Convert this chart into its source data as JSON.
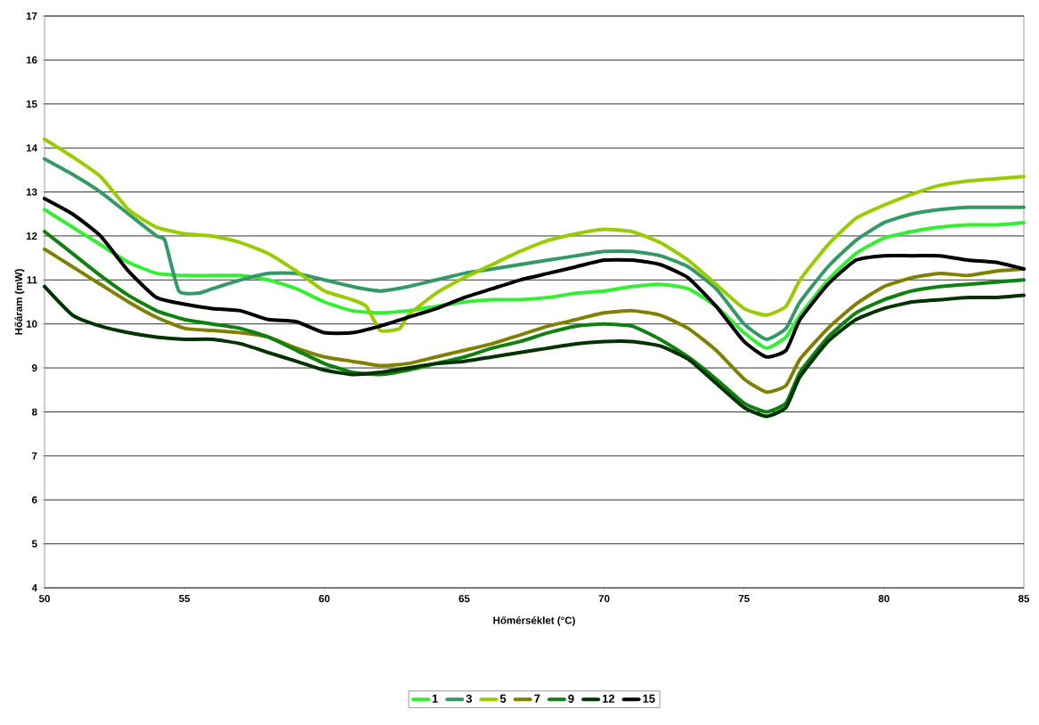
{
  "chart_data": {
    "type": "line",
    "xlabel": "Hőmérséklet (°C)",
    "ylabel": "Hőáram (mW)",
    "xlim": [
      50,
      85
    ],
    "xticks": [
      50,
      55,
      60,
      65,
      70,
      75,
      80,
      85
    ],
    "ylim": [
      4,
      17
    ],
    "yticks": [
      4,
      5,
      6,
      7,
      8,
      9,
      10,
      11,
      12,
      13,
      14,
      15,
      16,
      17
    ],
    "grid": "y",
    "legend": "bottom",
    "line_style": "solid",
    "series": [
      {
        "name": "1",
        "color": "#33ee33",
        "x": [
          50,
          51,
          52,
          53,
          54,
          55,
          56,
          57,
          58,
          59,
          60,
          61,
          62,
          63,
          64,
          65,
          66,
          67,
          68,
          69,
          70,
          71,
          72,
          73,
          74,
          75,
          75.8,
          76.5,
          77,
          78,
          79,
          80,
          81,
          82,
          83,
          84,
          85
        ],
        "values": [
          12.6,
          12.2,
          11.8,
          11.4,
          11.15,
          11.1,
          11.1,
          11.1,
          11.0,
          10.8,
          10.5,
          10.3,
          10.25,
          10.3,
          10.4,
          10.5,
          10.55,
          10.55,
          10.6,
          10.7,
          10.75,
          10.85,
          10.9,
          10.8,
          10.4,
          9.8,
          9.45,
          9.7,
          10.2,
          11.0,
          11.6,
          11.95,
          12.1,
          12.2,
          12.25,
          12.25,
          12.3
        ]
      },
      {
        "name": "3",
        "color": "#339966",
        "x": [
          50,
          51,
          52,
          53,
          54,
          54.3,
          54.8,
          55.5,
          56,
          57,
          58,
          59,
          60,
          61,
          62,
          63,
          64,
          65,
          66,
          67,
          68,
          69,
          70,
          71,
          72,
          73,
          74,
          75,
          75.8,
          76.5,
          77,
          78,
          79,
          80,
          81,
          82,
          83,
          84,
          85
        ],
        "values": [
          13.75,
          13.4,
          13.0,
          12.5,
          12.0,
          11.9,
          10.75,
          10.7,
          10.8,
          11.0,
          11.15,
          11.15,
          11.0,
          10.85,
          10.75,
          10.85,
          11.0,
          11.15,
          11.25,
          11.35,
          11.45,
          11.55,
          11.65,
          11.65,
          11.55,
          11.3,
          10.8,
          10.0,
          9.65,
          9.9,
          10.5,
          11.3,
          11.9,
          12.3,
          12.5,
          12.6,
          12.65,
          12.65,
          12.65
        ]
      },
      {
        "name": "5",
        "color": "#99cc00",
        "x": [
          50,
          51,
          52,
          53,
          54,
          55,
          56,
          57,
          58,
          59,
          60,
          61,
          61.5,
          62,
          62.7,
          63,
          64,
          65,
          66,
          67,
          68,
          69,
          70,
          71,
          72,
          73,
          74,
          75,
          75.8,
          76.5,
          77,
          78,
          79,
          80,
          81,
          82,
          83,
          84,
          85
        ],
        "values": [
          14.2,
          13.8,
          13.35,
          12.6,
          12.2,
          12.05,
          12.0,
          11.85,
          11.6,
          11.2,
          10.75,
          10.55,
          10.4,
          9.85,
          9.9,
          10.2,
          10.7,
          11.05,
          11.35,
          11.65,
          11.9,
          12.05,
          12.15,
          12.1,
          11.85,
          11.45,
          10.9,
          10.35,
          10.2,
          10.4,
          11.0,
          11.8,
          12.4,
          12.7,
          12.95,
          13.15,
          13.25,
          13.3,
          13.35
        ]
      },
      {
        "name": "7",
        "color": "#808000",
        "x": [
          50,
          51,
          52,
          53,
          54,
          55,
          56,
          57,
          58,
          59,
          60,
          61,
          62,
          63,
          64,
          65,
          66,
          67,
          68,
          69,
          70,
          71,
          72,
          73,
          74,
          75,
          75.8,
          76.5,
          77,
          78,
          79,
          80,
          81,
          82,
          83,
          84,
          85
        ],
        "values": [
          11.7,
          11.3,
          10.9,
          10.5,
          10.15,
          9.9,
          9.85,
          9.8,
          9.7,
          9.45,
          9.25,
          9.15,
          9.05,
          9.1,
          9.25,
          9.4,
          9.55,
          9.75,
          9.95,
          10.1,
          10.25,
          10.3,
          10.2,
          9.9,
          9.4,
          8.75,
          8.45,
          8.6,
          9.2,
          9.9,
          10.45,
          10.85,
          11.05,
          11.15,
          11.1,
          11.2,
          11.25
        ]
      },
      {
        "name": "9",
        "color": "#108010",
        "x": [
          50,
          51,
          52,
          53,
          54,
          55,
          56,
          57,
          58,
          59,
          60,
          61,
          62,
          63,
          64,
          65,
          66,
          67,
          68,
          69,
          70,
          71,
          72,
          73,
          74,
          75,
          75.8,
          76.5,
          77,
          78,
          79,
          80,
          81,
          82,
          83,
          84,
          85
        ],
        "values": [
          12.1,
          11.6,
          11.1,
          10.65,
          10.3,
          10.1,
          10.0,
          9.9,
          9.7,
          9.4,
          9.1,
          8.9,
          8.85,
          8.95,
          9.1,
          9.25,
          9.45,
          9.6,
          9.8,
          9.95,
          10.0,
          9.95,
          9.65,
          9.25,
          8.75,
          8.2,
          8.0,
          8.2,
          8.9,
          9.7,
          10.25,
          10.55,
          10.75,
          10.85,
          10.9,
          10.95,
          11.0
        ]
      },
      {
        "name": "12",
        "color": "#003300",
        "x": [
          50,
          51,
          52,
          53,
          54,
          55,
          56,
          57,
          58,
          59,
          60,
          61,
          62,
          63,
          64,
          65,
          66,
          67,
          68,
          69,
          70,
          71,
          72,
          73,
          74,
          75,
          75.8,
          76.5,
          77,
          78,
          79,
          80,
          81,
          82,
          83,
          84,
          85
        ],
        "values": [
          10.85,
          10.2,
          9.95,
          9.8,
          9.7,
          9.65,
          9.65,
          9.55,
          9.35,
          9.15,
          8.95,
          8.85,
          8.9,
          9.0,
          9.1,
          9.15,
          9.25,
          9.35,
          9.45,
          9.55,
          9.6,
          9.6,
          9.5,
          9.2,
          8.65,
          8.1,
          7.9,
          8.1,
          8.8,
          9.6,
          10.1,
          10.35,
          10.5,
          10.55,
          10.6,
          10.6,
          10.65
        ]
      },
      {
        "name": "15",
        "color": "#000000",
        "x": [
          50,
          51,
          52,
          53,
          54,
          55,
          56,
          57,
          58,
          59,
          60,
          61,
          62,
          63,
          64,
          65,
          66,
          67,
          68,
          69,
          70,
          71,
          72,
          73,
          74,
          75,
          75.8,
          76.5,
          77,
          78,
          79,
          80,
          81,
          82,
          83,
          84,
          85
        ],
        "values": [
          12.85,
          12.5,
          12.0,
          11.2,
          10.6,
          10.45,
          10.35,
          10.3,
          10.1,
          10.05,
          9.8,
          9.8,
          9.95,
          10.15,
          10.35,
          10.6,
          10.8,
          11.0,
          11.15,
          11.3,
          11.45,
          11.45,
          11.35,
          11.05,
          10.4,
          9.6,
          9.25,
          9.4,
          10.1,
          10.9,
          11.45,
          11.55,
          11.55,
          11.55,
          11.45,
          11.4,
          11.25
        ]
      }
    ]
  }
}
